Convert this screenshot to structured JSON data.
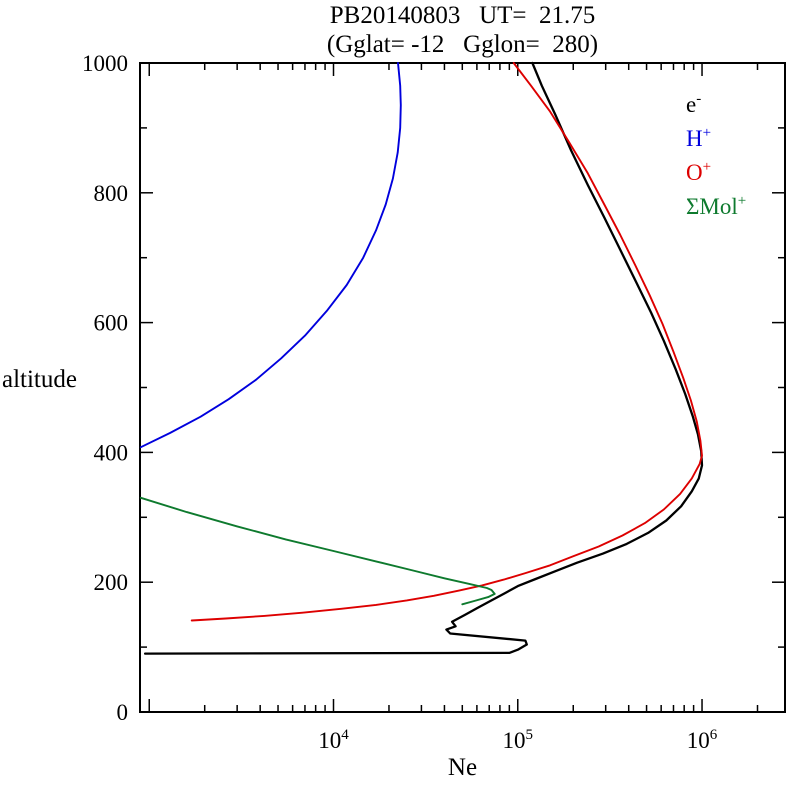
{
  "chart_data": {
    "type": "line",
    "title": "PB20140803   UT=  21.75",
    "subtitle": "(Gglat= -12   Gglon=  280)",
    "xlabel": "Ne",
    "ylabel": "altitude",
    "x_scale": "log",
    "xlim": [
      891,
      2820000
    ],
    "ylim": [
      0,
      1000
    ],
    "x_major_ticks": [
      10000,
      100000,
      1000000
    ],
    "x_major_tick_labels": [
      {
        "base": "10",
        "sup": "4"
      },
      {
        "base": "10",
        "sup": "5"
      },
      {
        "base": "10",
        "sup": "6"
      }
    ],
    "y_major_ticks": [
      0,
      200,
      400,
      600,
      800,
      1000
    ],
    "y_minor_step": 100,
    "grid": false,
    "legend_position": "top-right-inside",
    "series": [
      {
        "name": "e-",
        "label_base": "e",
        "label_sup": "-",
        "color": "#000000",
        "width": 2.3,
        "points": [
          [
            950,
            90
          ],
          [
            90000,
            91
          ],
          [
            100000,
            96
          ],
          [
            112000,
            104
          ],
          [
            110000,
            110
          ],
          [
            43000,
            121
          ],
          [
            41000,
            127
          ],
          [
            46000,
            132
          ],
          [
            44000,
            139
          ],
          [
            52000,
            150
          ],
          [
            60000,
            160
          ],
          [
            72000,
            172
          ],
          [
            85000,
            183
          ],
          [
            100000,
            194
          ],
          [
            125000,
            205
          ],
          [
            160000,
            217
          ],
          [
            210000,
            230
          ],
          [
            290000,
            244
          ],
          [
            390000,
            259
          ],
          [
            510000,
            276
          ],
          [
            640000,
            295
          ],
          [
            770000,
            317
          ],
          [
            880000,
            340
          ],
          [
            960000,
            360
          ],
          [
            1000000,
            380
          ],
          [
            990000,
            402
          ],
          [
            950000,
            428
          ],
          [
            890000,
            456
          ],
          [
            810000,
            490
          ],
          [
            720000,
            528
          ],
          [
            620000,
            572
          ],
          [
            530000,
            615
          ],
          [
            440000,
            662
          ],
          [
            360000,
            712
          ],
          [
            295000,
            762
          ],
          [
            240000,
            812
          ],
          [
            195000,
            865
          ],
          [
            160000,
            920
          ],
          [
            135000,
            965
          ],
          [
            120000,
            1000
          ]
        ]
      },
      {
        "name": "H+",
        "label_base": "H",
        "label_sup": "+",
        "color": "#0000dd",
        "width": 1.9,
        "points": [
          [
            900,
            408
          ],
          [
            1300,
            430
          ],
          [
            1900,
            455
          ],
          [
            2700,
            482
          ],
          [
            3800,
            512
          ],
          [
            5200,
            545
          ],
          [
            7000,
            580
          ],
          [
            9200,
            618
          ],
          [
            11800,
            658
          ],
          [
            14500,
            700
          ],
          [
            17000,
            742
          ],
          [
            19200,
            782
          ],
          [
            21000,
            822
          ],
          [
            22300,
            862
          ],
          [
            23000,
            900
          ],
          [
            23200,
            935
          ],
          [
            23000,
            965
          ],
          [
            22400,
            1000
          ]
        ]
      },
      {
        "name": "O+",
        "label_base": "O",
        "label_sup": "+",
        "color": "#dd0000",
        "width": 1.9,
        "points": [
          [
            1700,
            141
          ],
          [
            2600,
            144
          ],
          [
            4200,
            148
          ],
          [
            6800,
            153
          ],
          [
            11000,
            159
          ],
          [
            17000,
            165
          ],
          [
            25000,
            172
          ],
          [
            35000,
            179
          ],
          [
            48000,
            187
          ],
          [
            64000,
            195
          ],
          [
            84000,
            204
          ],
          [
            110000,
            214
          ],
          [
            150000,
            226
          ],
          [
            200000,
            240
          ],
          [
            275000,
            255
          ],
          [
            370000,
            272
          ],
          [
            490000,
            291
          ],
          [
            620000,
            312
          ],
          [
            760000,
            336
          ],
          [
            880000,
            360
          ],
          [
            970000,
            382
          ],
          [
            1000000,
            395
          ],
          [
            980000,
            418
          ],
          [
            935000,
            448
          ],
          [
            870000,
            480
          ],
          [
            790000,
            515
          ],
          [
            700000,
            555
          ],
          [
            610000,
            598
          ],
          [
            520000,
            642
          ],
          [
            435000,
            688
          ],
          [
            360000,
            735
          ],
          [
            295000,
            782
          ],
          [
            240000,
            830
          ],
          [
            190000,
            878
          ],
          [
            150000,
            925
          ],
          [
            118000,
            965
          ],
          [
            95000,
            1000
          ]
        ]
      },
      {
        "name": "Mol+",
        "label_base": "ΣMol",
        "label_sup": "+",
        "color": "#0e7a2e",
        "width": 1.9,
        "points": [
          [
            900,
            330
          ],
          [
            1600,
            308
          ],
          [
            3000,
            286
          ],
          [
            5500,
            266
          ],
          [
            10000,
            248
          ],
          [
            17000,
            232
          ],
          [
            27000,
            218
          ],
          [
            40000,
            206
          ],
          [
            55000,
            197
          ],
          [
            68000,
            191
          ],
          [
            72000,
            188
          ],
          [
            75000,
            182
          ],
          [
            69000,
            177
          ],
          [
            58000,
            171
          ],
          [
            50000,
            166
          ]
        ]
      }
    ]
  }
}
